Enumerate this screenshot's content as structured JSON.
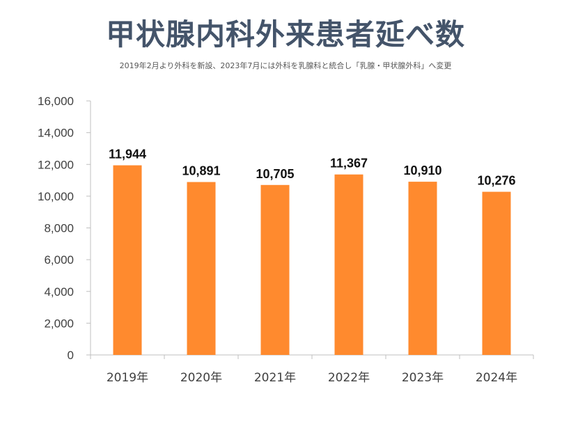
{
  "title": "甲状腺内科外来患者延べ数",
  "subtitle": "2019年2月より外科を新設、2023年7月には外科を乳腺科と統合し「乳腺・甲状腺外科」へ変更",
  "colors": {
    "bar": "#ff8a2e",
    "axis": "#bfbfbf",
    "title": "#44546a"
  },
  "chart_data": {
    "type": "bar",
    "title": "甲状腺内科外来患者延べ数",
    "subtitle": "2019年2月より外科を新設、2023年7月には外科を乳腺科と統合し「乳腺・甲状腺外科」へ変更",
    "categories": [
      "2019年",
      "2020年",
      "2021年",
      "2022年",
      "2023年",
      "2024年"
    ],
    "values": [
      11944,
      10891,
      10705,
      11367,
      10910,
      10276
    ],
    "value_labels": [
      "11,944",
      "10,891",
      "10,705",
      "11,367",
      "10,910",
      "10,276"
    ],
    "yticks": [
      0,
      2000,
      4000,
      6000,
      8000,
      10000,
      12000,
      14000,
      16000
    ],
    "ytick_labels": [
      "0",
      "2,000",
      "4,000",
      "6,000",
      "8,000",
      "10,000",
      "12,000",
      "14,000",
      "16,000"
    ],
    "ylim": [
      0,
      16000
    ],
    "xlabel": "",
    "ylabel": "",
    "grid": false,
    "legend": "none"
  }
}
